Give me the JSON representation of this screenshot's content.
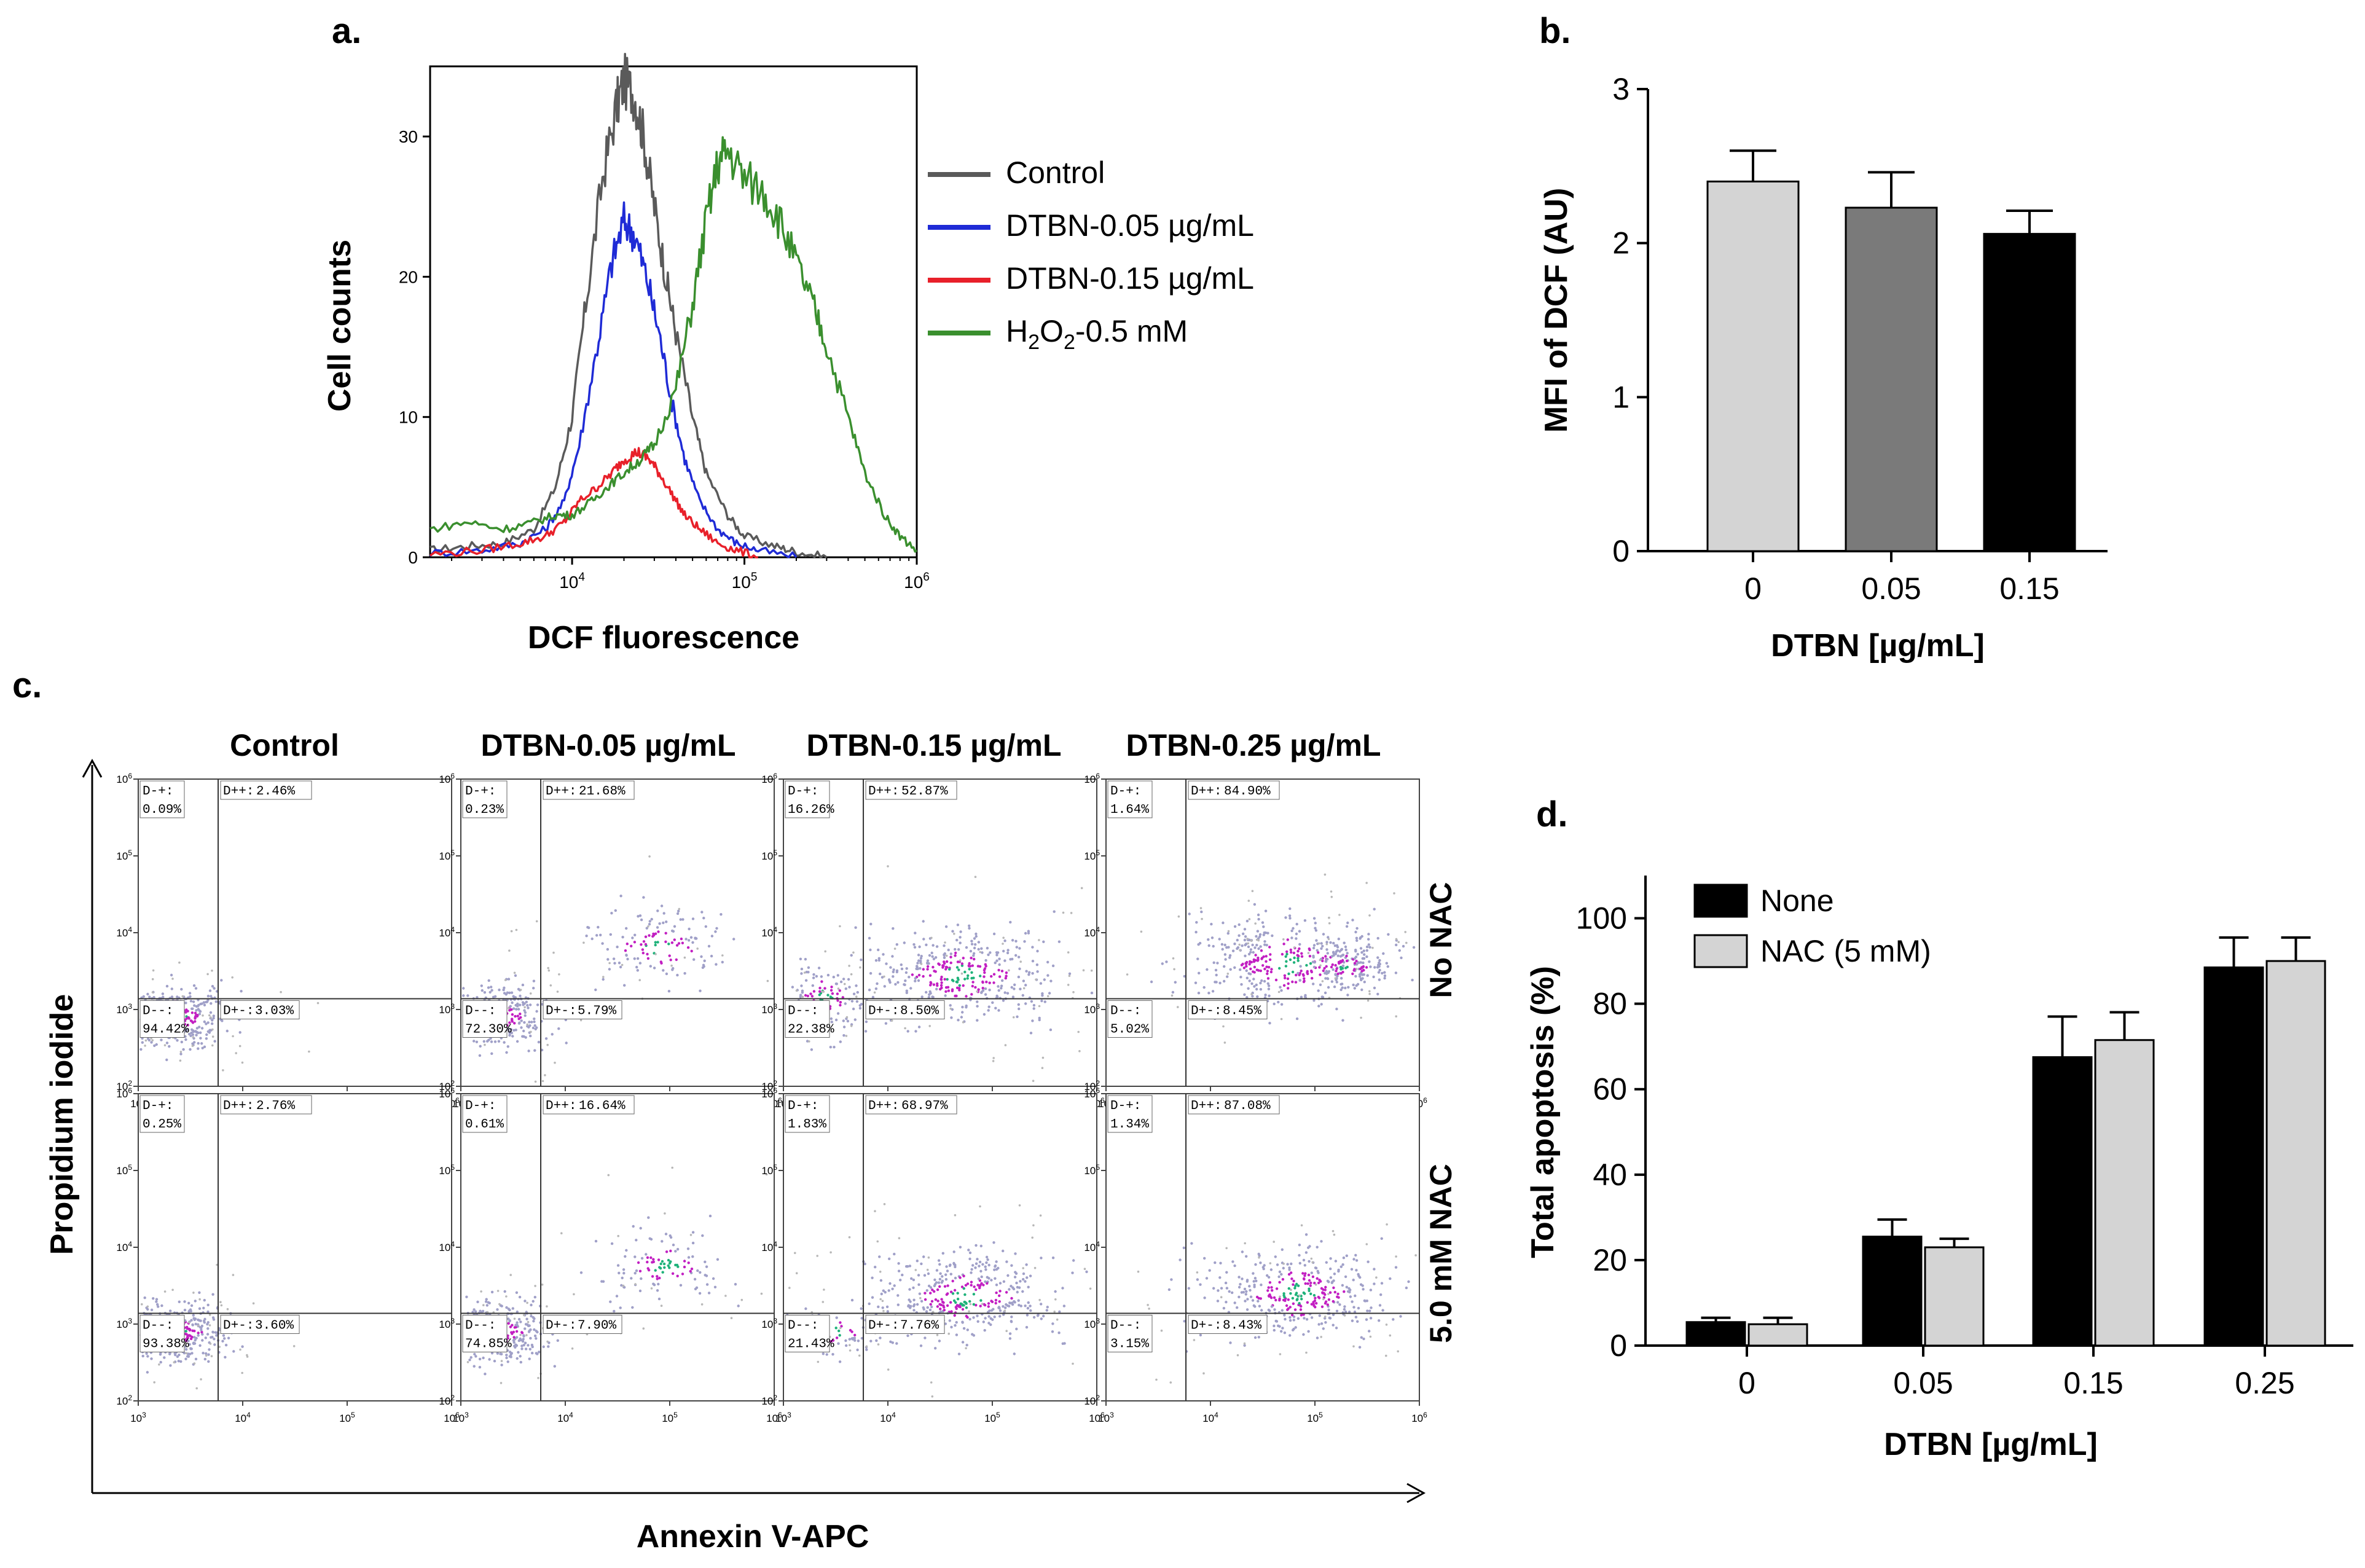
{
  "panels": {
    "a_label": "a.",
    "b_label": "b.",
    "c_label": "c.",
    "d_label": "d."
  },
  "colors": {
    "control": "#5a5a5a",
    "dtbn005": "#1f2bd6",
    "dtbn015": "#e8202a",
    "h2o2": "#3a8f2e",
    "bar_light": "#d4d4d4",
    "bar_mid": "#7a7a7a",
    "bar_dark": "#000000",
    "axis": "#000000"
  },
  "chart_data": [
    {
      "id": "a",
      "type": "line",
      "title": "",
      "xlabel": "DCF fluorescence",
      "ylabel": "Cell counts",
      "x_scale": "log",
      "xlim": [
        1500,
        1000000
      ],
      "ylim": [
        0,
        35
      ],
      "x_ticks": [
        {
          "value": 10000,
          "base": "10",
          "exp": "4"
        },
        {
          "value": 100000,
          "base": "10",
          "exp": "5"
        },
        {
          "value": 1000000,
          "base": "10",
          "exp": "6"
        }
      ],
      "y_ticks": [
        {
          "value": 0,
          "label": "0"
        },
        {
          "value": 10,
          "label": "10"
        },
        {
          "value": 20,
          "label": "20"
        },
        {
          "value": 30,
          "label": "30"
        }
      ],
      "legend": {
        "position": "right",
        "entries": [
          {
            "label": "Control",
            "color_key": "control"
          },
          {
            "label": "DTBN-0.05 µg/mL",
            "color_key": "dtbn005"
          },
          {
            "label": "DTBN-0.15 µg/mL",
            "color_key": "dtbn015"
          },
          {
            "label": "H2O2-0.5 mM",
            "color_key": "h2o2",
            "parts": [
              "H",
              "2",
              "O",
              "2",
              "-0.5 mM"
            ]
          }
        ]
      },
      "series": [
        {
          "name": "Control",
          "color_key": "control",
          "x": [
            1500,
            2500,
            4000,
            6000,
            8000,
            10000,
            12000,
            15000,
            18000,
            20000,
            23000,
            26000,
            30000,
            35000,
            40000,
            50000,
            60000,
            80000,
            100000,
            150000,
            200000,
            300000
          ],
          "y": [
            0.5,
            0.8,
            1,
            2,
            5,
            10,
            18,
            27,
            32,
            34,
            33,
            30,
            25,
            20,
            16,
            10,
            6,
            3,
            1.5,
            0.8,
            0.4,
            0
          ]
        },
        {
          "name": "DTBN-0.05 µg/mL",
          "color_key": "dtbn005",
          "x": [
            1500,
            3000,
            5000,
            7000,
            9000,
            11000,
            14000,
            17000,
            20000,
            23000,
            27000,
            32000,
            38000,
            45000,
            55000,
            70000,
            90000,
            120000,
            200000
          ],
          "y": [
            0.3,
            0.5,
            1,
            2,
            4,
            8,
            15,
            21,
            24,
            23,
            20,
            16,
            11,
            7,
            4,
            2,
            1,
            0.5,
            0
          ]
        },
        {
          "name": "DTBN-0.15 µg/mL",
          "color_key": "dtbn015",
          "x": [
            1500,
            3000,
            5000,
            7000,
            9000,
            11000,
            14000,
            17000,
            20000,
            24000,
            28000,
            32000,
            38000,
            45000,
            55000,
            70000,
            90000,
            120000
          ],
          "y": [
            0.2,
            0.5,
            1,
            1.5,
            2.5,
            4,
            5,
            6,
            7,
            7.5,
            7,
            6,
            4.5,
            3,
            2,
            1,
            0.5,
            0
          ]
        },
        {
          "name": "H2O2-0.5 mM",
          "color_key": "h2o2",
          "x": [
            1500,
            2500,
            4000,
            6000,
            8000,
            10000,
            13000,
            16000,
            20000,
            25000,
            30000,
            40000,
            50000,
            60000,
            70000,
            80000,
            100000,
            130000,
            160000,
            200000,
            250000,
            300000,
            400000,
            500000,
            650000,
            800000,
            1000000
          ],
          "y": [
            2,
            2.5,
            2,
            2.5,
            3,
            3,
            4,
            5,
            6,
            7,
            8,
            12,
            18,
            24,
            28,
            29,
            27,
            26,
            24,
            21,
            18,
            15,
            10,
            6,
            3,
            1.5,
            0.5
          ]
        }
      ]
    },
    {
      "id": "b",
      "type": "bar",
      "title": "",
      "xlabel": "DTBN [µg/mL]",
      "ylabel": "MFI of DCF (AU)",
      "categories": [
        "0",
        "0.05",
        "0.15"
      ],
      "values": [
        2.4,
        2.23,
        2.06
      ],
      "errors": [
        0.2,
        0.23,
        0.15
      ],
      "bar_color_keys": [
        "bar_light",
        "bar_mid",
        "bar_dark"
      ],
      "ylim": [
        0,
        3
      ],
      "y_ticks": [
        "0",
        "1",
        "2",
        "3"
      ]
    },
    {
      "id": "c",
      "type": "scatter",
      "title": "",
      "xlabel": "Annexin V-APC",
      "ylabel": "Propidium iodide",
      "columns": [
        "Control",
        "DTBN-0.05 µg/mL",
        "DTBN-0.15 µg/mL",
        "DTBN-0.25 µg/mL"
      ],
      "rows": [
        "No NAC",
        "5.0 mM NAC"
      ],
      "x_ticks": [
        {
          "value": 1000,
          "base": "10",
          "exp": "3"
        },
        {
          "value": 10000,
          "base": "10",
          "exp": "4"
        },
        {
          "value": 100000,
          "base": "10",
          "exp": "5"
        },
        {
          "value": 1000000,
          "base": "10",
          "exp": "6"
        }
      ],
      "y_ticks": [
        {
          "value": 100,
          "base": "10",
          "exp": "2"
        },
        {
          "value": 1000,
          "base": "10",
          "exp": "3"
        },
        {
          "value": 10000,
          "base": "10",
          "exp": "4"
        },
        {
          "value": 100000,
          "base": "10",
          "exp": "5"
        },
        {
          "value": 1000000,
          "base": "10",
          "exp": "6"
        }
      ],
      "gate_labels": {
        "dmp": "D-+:",
        "dpp": "D++:",
        "dmm": "D--:",
        "dpm": "D+-:"
      },
      "panels": [
        {
          "row": 0,
          "col": 0,
          "d_minus_plus": "0.09%",
          "d_plus_plus": "2.46%",
          "d_minus_minus": "94.42%",
          "d_plus_minus": "3.03%"
        },
        {
          "row": 0,
          "col": 1,
          "d_minus_plus": "0.23%",
          "d_plus_plus": "21.68%",
          "d_minus_minus": "72.30%",
          "d_plus_minus": "5.79%"
        },
        {
          "row": 0,
          "col": 2,
          "d_minus_plus": "16.26%",
          "d_plus_plus": "52.87%",
          "d_minus_minus": "22.38%",
          "d_plus_minus": "8.50%"
        },
        {
          "row": 0,
          "col": 3,
          "d_minus_plus": "1.64%",
          "d_plus_plus": "84.90%",
          "d_minus_minus": "5.02%",
          "d_plus_minus": "8.45%"
        },
        {
          "row": 1,
          "col": 0,
          "d_minus_plus": "0.25%",
          "d_plus_plus": "2.76%",
          "d_minus_minus": "93.38%",
          "d_plus_minus": "3.60%"
        },
        {
          "row": 1,
          "col": 1,
          "d_minus_plus": "0.61%",
          "d_plus_plus": "16.64%",
          "d_minus_minus": "74.85%",
          "d_plus_minus": "7.90%"
        },
        {
          "row": 1,
          "col": 2,
          "d_minus_plus": "1.83%",
          "d_plus_plus": "68.97%",
          "d_minus_minus": "21.43%",
          "d_plus_minus": "7.76%"
        },
        {
          "row": 1,
          "col": 3,
          "d_minus_plus": "1.34%",
          "d_plus_plus": "87.08%",
          "d_minus_minus": "3.15%",
          "d_plus_minus": "8.43%"
        }
      ]
    },
    {
      "id": "d",
      "type": "bar",
      "title": "",
      "xlabel": "DTBN [µg/mL]",
      "ylabel": "Total apoptosis (%)",
      "categories": [
        "0",
        "0.05",
        "0.15",
        "0.25"
      ],
      "ylim": [
        0,
        110
      ],
      "y_ticks": [
        "0",
        "20",
        "40",
        "60",
        "80",
        "100"
      ],
      "legend": {
        "position": "top-left"
      },
      "series": [
        {
          "name": "None",
          "color_key": "bar_dark",
          "values": [
            5.5,
            25.5,
            67.5,
            88.5
          ],
          "errors": [
            1,
            4,
            9.5,
            7
          ]
        },
        {
          "name": "NAC (5 mM)",
          "color_key": "bar_light",
          "values": [
            5,
            23,
            71.5,
            90
          ],
          "errors": [
            1.5,
            2,
            6.5,
            5.5
          ]
        }
      ]
    }
  ]
}
